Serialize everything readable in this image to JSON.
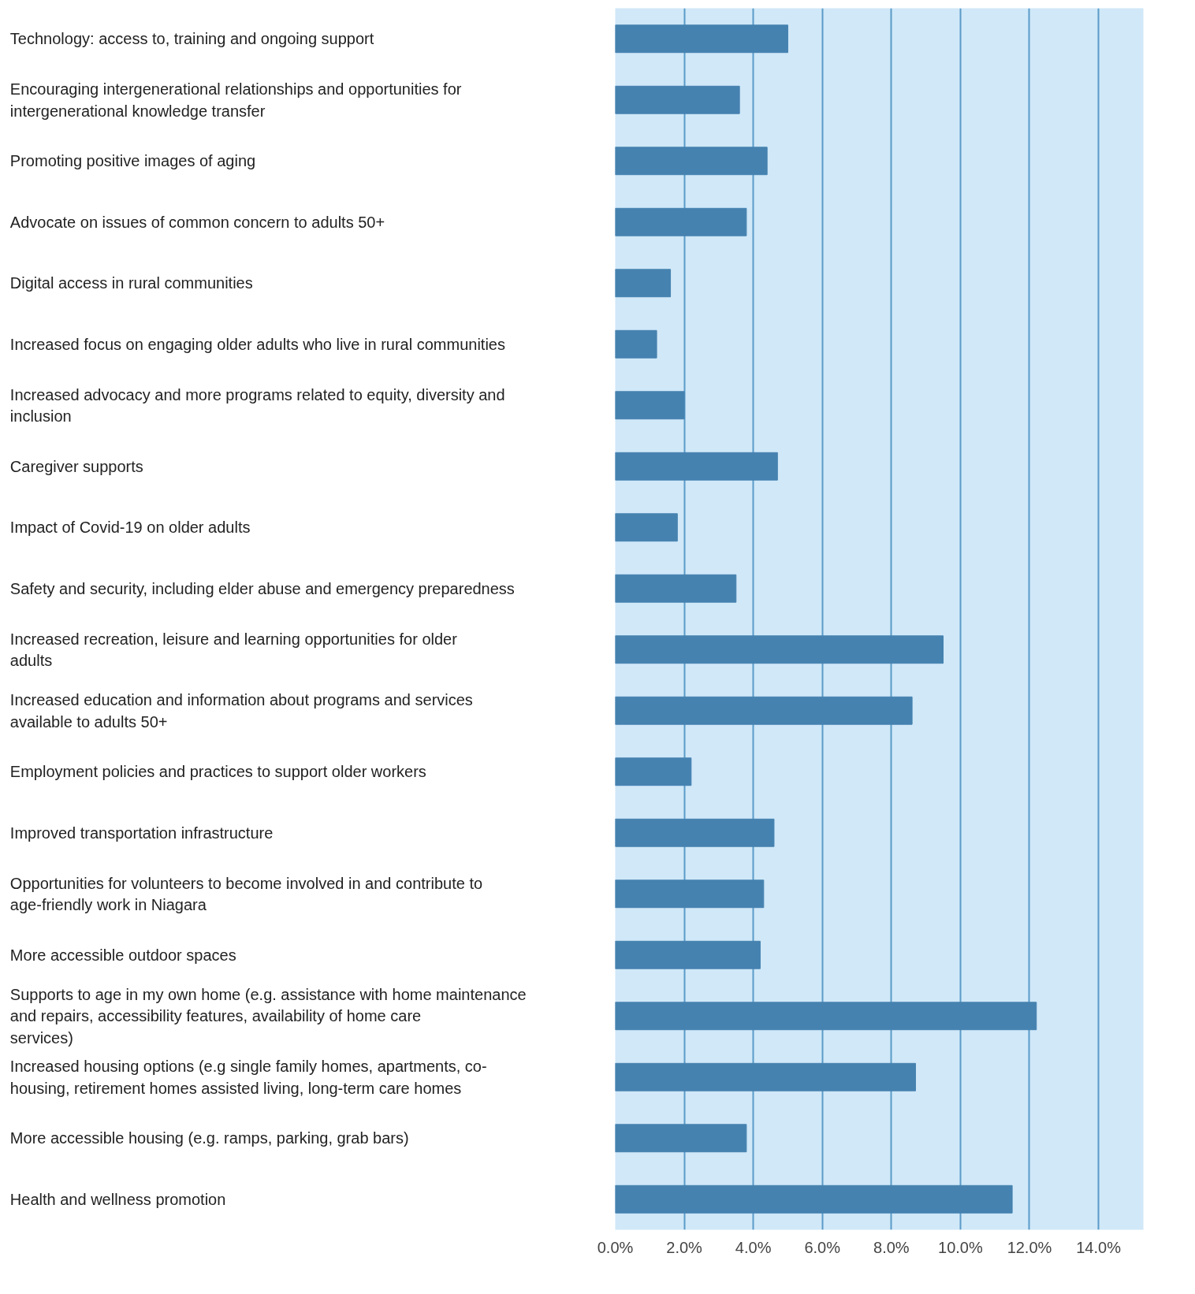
{
  "chart_data": {
    "type": "bar",
    "orientation": "horizontal",
    "categories": [
      "Technology: access to, training and ongoing support",
      "Encouraging intergenerational relationships and opportunities for intergenerational knowledge transfer",
      "Promoting positive images of aging",
      "Advocate on issues of common concern to adults 50+",
      "Digital access in rural communities",
      "Increased focus on engaging older adults who live in rural communities",
      "Increased advocacy and more programs related to equity, diversity and inclusion",
      "Caregiver supports",
      "Impact of Covid-19 on older adults",
      "Safety and security, including elder abuse and emergency preparedness",
      "Increased recreation, leisure and learning opportunities for older adults",
      "Increased education and information about programs and services available to adults 50+",
      "Employment policies and practices to support older workers",
      "Improved transportation infrastructure",
      "Opportunities for volunteers to become involved in and contribute to age-friendly work in Niagara",
      "More accessible outdoor spaces",
      "Supports to age in my own home (e.g. assistance with home maintenance and repairs, accessibility features, availability of home care services)",
      "Increased housing options (e.g single family homes, apartments, co-housing, retirement homes assisted living, long-term care homes",
      "More accessible housing (e.g. ramps, parking, grab bars)",
      "Health and wellness promotion"
    ],
    "values": [
      5.0,
      3.6,
      4.4,
      3.8,
      1.6,
      1.2,
      2.0,
      4.7,
      1.8,
      3.5,
      9.5,
      8.6,
      2.2,
      4.6,
      4.3,
      4.2,
      12.2,
      8.7,
      3.8,
      11.5
    ],
    "color": "#4682b0",
    "xlim": [
      0,
      15.3
    ],
    "xticks": [
      {
        "value": 0,
        "label": "0.0%"
      },
      {
        "value": 2,
        "label": "2.0%"
      },
      {
        "value": 4,
        "label": "4.0%"
      },
      {
        "value": 6,
        "label": "6.0%"
      },
      {
        "value": 8,
        "label": "8.0%"
      },
      {
        "value": 10,
        "label": "10.0%"
      },
      {
        "value": 12,
        "label": "12.0%"
      },
      {
        "value": 14,
        "label": "14.0%"
      }
    ],
    "grid": "x"
  }
}
